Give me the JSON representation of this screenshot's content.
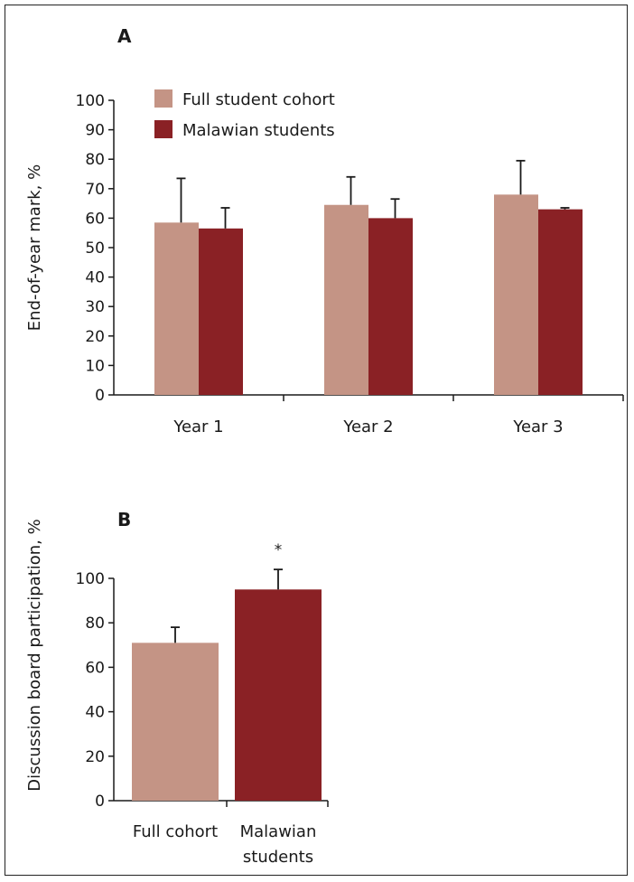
{
  "colors": {
    "full": "#c49485",
    "malawian": "#8a2125"
  },
  "chart_data": [
    {
      "type": "bar",
      "panel": "A",
      "ylabel": "End-of-year mark, %",
      "ylim": [
        0,
        100
      ],
      "yticks": [
        0,
        10,
        20,
        30,
        40,
        50,
        60,
        70,
        80,
        90,
        100
      ],
      "categories": [
        "Year 1",
        "Year 2",
        "Year 3"
      ],
      "legend_position": "top-left",
      "series": [
        {
          "name": "Full student cohort",
          "values": [
            58.5,
            64.5,
            68
          ],
          "errors": [
            15,
            9.5,
            11.5
          ]
        },
        {
          "name": "Malawian students",
          "values": [
            56.5,
            60,
            63
          ],
          "errors": [
            7,
            6.5,
            0.5
          ]
        }
      ]
    },
    {
      "type": "bar",
      "panel": "B",
      "ylabel": "Discussion board participation, %",
      "ylim": [
        0,
        100
      ],
      "yticks": [
        0,
        20,
        40,
        60,
        80,
        100
      ],
      "categories": [
        "Full cohort",
        "Malawian students"
      ],
      "values": [
        71,
        95
      ],
      "errors": [
        7,
        9
      ],
      "annotations": [
        "",
        "*"
      ]
    }
  ]
}
